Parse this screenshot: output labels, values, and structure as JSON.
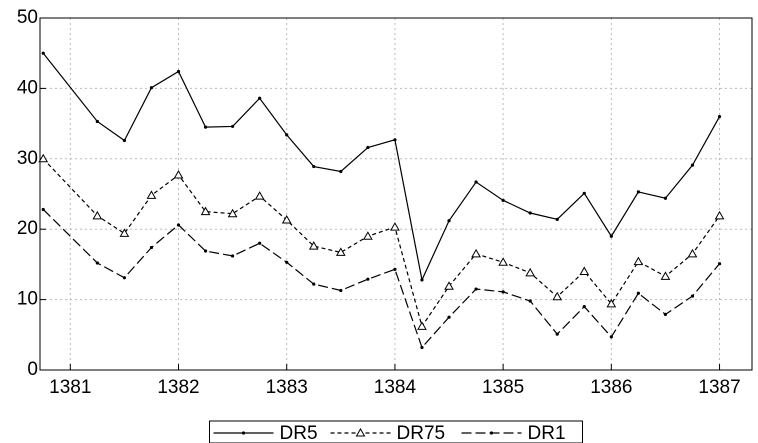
{
  "chart_data": {
    "type": "line",
    "x": [
      1380.75,
      1381.25,
      1381.5,
      1381.75,
      1382,
      1382.25,
      1382.5,
      1382.75,
      1383,
      1383.25,
      1383.5,
      1383.75,
      1384,
      1384.25,
      1384.5,
      1384.75,
      1385,
      1385.25,
      1385.5,
      1385.75,
      1386,
      1386.25,
      1386.5,
      1386.75,
      1387
    ],
    "series": [
      {
        "name": "DR5",
        "color": "#000000",
        "dash": "none",
        "marker": "dot",
        "values": [
          45,
          35.3,
          32.6,
          40.1,
          42.4,
          34.5,
          34.6,
          38.6,
          33.4,
          28.9,
          28.2,
          31.6,
          32.7,
          12.8,
          21.2,
          26.7,
          24.1,
          22.3,
          21.4,
          25.1,
          19,
          25.3,
          24.4,
          29.1,
          36
        ]
      },
      {
        "name": "DR75",
        "color": "#000000",
        "dash": "4 3",
        "marker": "triangle",
        "values": [
          30,
          21.9,
          19.4,
          24.8,
          27.7,
          22.5,
          22.2,
          24.7,
          21.3,
          17.6,
          16.7,
          19,
          20.3,
          6.2,
          11.9,
          16.5,
          15.3,
          13.8,
          10.4,
          14,
          9.4,
          15.4,
          13.3,
          16.5,
          21.9
        ]
      },
      {
        "name": "DR1",
        "color": "#000000",
        "dash": "10 4",
        "marker": "dot",
        "values": [
          22.8,
          15.2,
          13.1,
          17.4,
          20.6,
          16.9,
          16.2,
          18,
          15.3,
          12.2,
          11.3,
          12.9,
          14.3,
          3.2,
          7.5,
          11.5,
          11.1,
          9.8,
          5.1,
          9,
          4.7,
          10.9,
          7.9,
          10.5,
          15.1
        ]
      }
    ],
    "xlim": [
      1380.72,
      1387.3
    ],
    "xticks": [
      1381,
      1382,
      1383,
      1384,
      1385,
      1386,
      1387
    ],
    "ylim": [
      0,
      50
    ],
    "yticks": [
      0,
      10,
      20,
      30,
      40,
      50
    ],
    "grid": true,
    "legend": "bottom"
  }
}
